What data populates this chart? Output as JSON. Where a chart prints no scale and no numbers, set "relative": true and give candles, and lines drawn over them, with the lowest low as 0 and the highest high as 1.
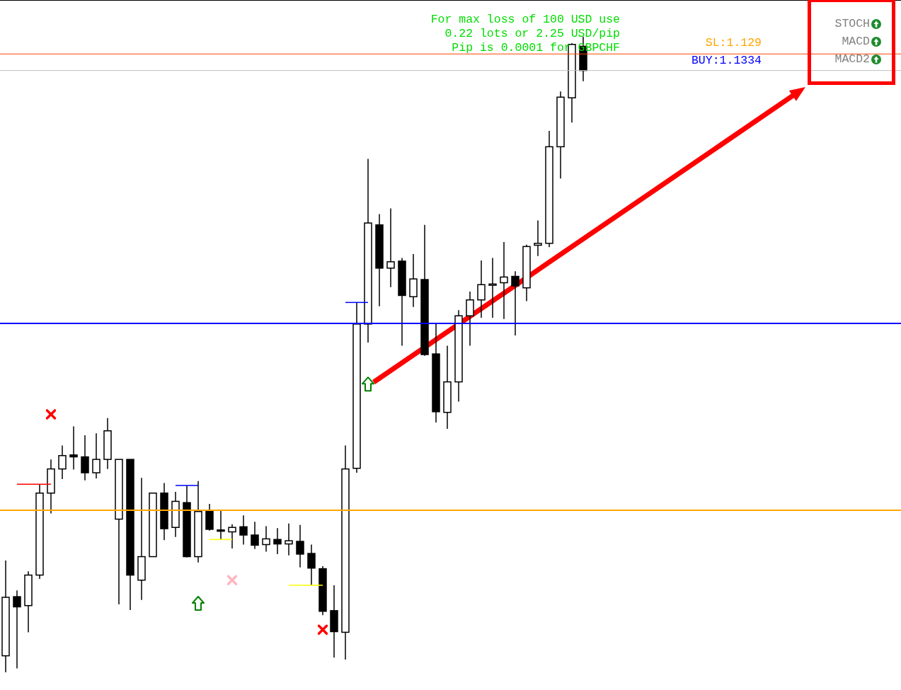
{
  "chart_data": {
    "type": "candlestick",
    "relative": true,
    "categories": [
      null,
      null,
      null,
      null,
      null,
      null,
      null,
      null,
      null,
      null,
      null,
      null,
      null,
      null,
      null,
      null,
      null,
      null,
      null,
      null,
      null,
      null,
      null,
      null,
      null,
      null,
      null,
      null,
      null,
      null,
      null,
      null,
      null,
      null,
      null,
      null,
      null,
      null,
      null,
      null,
      null,
      null,
      null,
      null,
      null,
      null,
      null,
      null,
      null,
      null,
      null,
      null
    ],
    "ohlc": [
      [
        0.026,
        0.176,
        0,
        0.118
      ],
      [
        0.119,
        0.129,
        0.006,
        0.103
      ],
      [
        0.105,
        0.159,
        0.063,
        0.153
      ],
      [
        0.153,
        0.295,
        0.147,
        0.282
      ],
      [
        0.282,
        0.335,
        0.25,
        0.32
      ],
      [
        0.32,
        0.357,
        0.304,
        0.341
      ],
      [
        0.342,
        0.387,
        0.319,
        0.339
      ],
      [
        0.339,
        0.373,
        0.302,
        0.314
      ],
      [
        0.314,
        0.376,
        0.305,
        0.335
      ],
      [
        0.335,
        0.4,
        0.32,
        0.38
      ],
      [
        0.241,
        0.335,
        0.107,
        0.335
      ],
      [
        0.335,
        0.335,
        0.098,
        0.153
      ],
      [
        0.145,
        0.306,
        0.114,
        0.182
      ],
      [
        0.182,
        0.282,
        0.182,
        0.282
      ],
      [
        0.282,
        0.298,
        0.208,
        0.226
      ],
      [
        0.228,
        0.284,
        0.213,
        0.269
      ],
      [
        0.267,
        0.294,
        0.181,
        0.182
      ],
      [
        0.182,
        0.301,
        0.173,
        0.253
      ],
      [
        0.253,
        0.265,
        0.223,
        0.225
      ],
      [
        0.224,
        0.256,
        0.209,
        0.222
      ],
      [
        0.221,
        0.233,
        0.195,
        0.228
      ],
      [
        0.229,
        0.247,
        0.201,
        0.216
      ],
      [
        0.216,
        0.237,
        0.194,
        0.2
      ],
      [
        0.201,
        0.23,
        0.19,
        0.21
      ],
      [
        0.209,
        0.227,
        0.186,
        0.202
      ],
      [
        0.202,
        0.234,
        0.184,
        0.207
      ],
      [
        0.206,
        0.232,
        0.165,
        0.186
      ],
      [
        0.187,
        0.201,
        0.137,
        0.164
      ],
      [
        0.163,
        0.167,
        0.09,
        0.096
      ],
      [
        0.097,
        0.137,
        0.023,
        0.064
      ],
      [
        0.063,
        0.357,
        0.02,
        0.32
      ],
      [
        0.321,
        0.582,
        0.314,
        0.548
      ],
      [
        0.548,
        0.808,
        0.519,
        0.707
      ],
      [
        0.704,
        0.721,
        0.576,
        0.636
      ],
      [
        0.636,
        0.73,
        0.606,
        0.646
      ],
      [
        0.647,
        0.652,
        0.514,
        0.593
      ],
      [
        0.591,
        0.658,
        0.575,
        0.619
      ],
      [
        0.618,
        0.704,
        0.498,
        0.5
      ],
      [
        0.501,
        0.548,
        0.393,
        0.41
      ],
      [
        0.409,
        0.514,
        0.383,
        0.457
      ],
      [
        0.457,
        0.57,
        0.426,
        0.561
      ],
      [
        0.561,
        0.599,
        0.514,
        0.586
      ],
      [
        0.586,
        0.648,
        0.558,
        0.61
      ],
      [
        0.609,
        0.652,
        0.558,
        0.611
      ],
      [
        0.613,
        0.677,
        0.556,
        0.622
      ],
      [
        0.623,
        0.631,
        0.53,
        0.608
      ],
      [
        0.605,
        0.673,
        0.584,
        0.67
      ],
      [
        0.672,
        0.711,
        0.655,
        0.675
      ],
      [
        0.675,
        0.852,
        0.669,
        0.827
      ],
      [
        0.827,
        0.914,
        0.777,
        0.905
      ],
      [
        0.904,
        0.99,
        0.865,
        0.988
      ],
      [
        0.985,
        1,
        0.93,
        0.947
      ]
    ],
    "series": [
      {
        "type": "line",
        "color": "#ff0000",
        "values": [
          null,
          0.296,
          0.296,
          0.296,
          0.296,
          null,
          null,
          null,
          null,
          null,
          null,
          null,
          null,
          null,
          null,
          null,
          null,
          null,
          null,
          null,
          null,
          null,
          null,
          null,
          null,
          null,
          null,
          null,
          null,
          null,
          null,
          null,
          null,
          null,
          null,
          null,
          null,
          null,
          null,
          null,
          null,
          null,
          null,
          null,
          null,
          null,
          null,
          null,
          null,
          null,
          null,
          null
        ]
      },
      {
        "type": "line",
        "color": "#0000ff",
        "values": [
          null,
          null,
          null,
          null,
          null,
          null,
          null,
          null,
          null,
          null,
          null,
          null,
          null,
          null,
          null,
          0.294,
          0.294,
          0.294,
          null,
          null,
          null,
          null,
          null,
          null,
          null,
          null,
          null,
          null,
          null,
          null,
          null,
          null,
          null,
          null,
          null,
          null,
          null,
          null,
          null,
          null,
          null,
          null,
          null,
          null,
          null,
          null,
          null,
          null,
          null,
          null,
          null,
          null
        ]
      },
      {
        "type": "line",
        "color": "#ffff00",
        "values": [
          null,
          null,
          null,
          null,
          null,
          null,
          null,
          null,
          null,
          null,
          null,
          null,
          null,
          null,
          null,
          null,
          null,
          null,
          0.209,
          0.209,
          0.209,
          null,
          null,
          null,
          null,
          null,
          null,
          null,
          null,
          null,
          null,
          null,
          null,
          null,
          null,
          null,
          null,
          null,
          null,
          null,
          null,
          null,
          null,
          null,
          null,
          null,
          null,
          null,
          null,
          null,
          null,
          null
        ]
      },
      {
        "type": "line",
        "color": "#ffff00",
        "values": [
          null,
          null,
          null,
          null,
          null,
          null,
          null,
          null,
          null,
          null,
          null,
          null,
          null,
          null,
          null,
          null,
          null,
          null,
          null,
          null,
          null,
          null,
          null,
          null,
          null,
          0.137,
          0.137,
          0.137,
          0.137,
          null,
          null,
          null,
          null,
          null,
          null,
          null,
          null,
          null,
          null,
          null,
          null,
          null,
          null,
          null,
          null,
          null,
          null,
          null,
          null,
          null,
          null,
          null
        ]
      },
      {
        "type": "line",
        "color": "#0000ff",
        "values": [
          null,
          null,
          null,
          null,
          null,
          null,
          null,
          null,
          null,
          null,
          null,
          null,
          null,
          null,
          null,
          null,
          null,
          null,
          null,
          null,
          null,
          null,
          null,
          null,
          null,
          null,
          null,
          null,
          null,
          null,
          0.582,
          0.582,
          0.582,
          null,
          null,
          null,
          null,
          null,
          null,
          null,
          null,
          null,
          null,
          null,
          null,
          null,
          null,
          null,
          null,
          null,
          null,
          null
        ]
      },
      {
        "type": "scatter",
        "color": "#ff0000",
        "marker": "cross",
        "values": [
          null,
          null,
          null,
          null,
          0.406,
          null,
          null,
          null,
          null,
          null,
          null,
          null,
          null,
          null,
          null,
          null,
          null,
          null,
          null,
          null,
          null,
          null,
          null,
          null,
          null,
          null,
          null,
          null,
          0.067,
          null,
          null,
          null,
          null,
          null,
          null,
          null,
          null,
          null,
          null,
          null,
          null,
          null,
          null,
          null,
          null,
          null,
          null,
          null,
          null,
          null,
          null,
          null
        ]
      },
      {
        "type": "scatter",
        "color": "#ffb6c1",
        "marker": "cross",
        "values": [
          null,
          null,
          null,
          null,
          null,
          null,
          null,
          null,
          null,
          null,
          null,
          null,
          null,
          null,
          null,
          null,
          null,
          null,
          null,
          null,
          0.145,
          null,
          null,
          null,
          null,
          null,
          null,
          null,
          null,
          null,
          null,
          null,
          null,
          null,
          null,
          null,
          null,
          null,
          null,
          null,
          null,
          null,
          null,
          null,
          null,
          null,
          null,
          null,
          null,
          null,
          null,
          null
        ]
      },
      {
        "type": "scatter",
        "color": "#008000",
        "marker": "triangle",
        "values": [
          null,
          null,
          null,
          null,
          null,
          null,
          null,
          null,
          null,
          null,
          null,
          null,
          null,
          null,
          null,
          null,
          null,
          0.108,
          null,
          null,
          null,
          null,
          null,
          null,
          null,
          null,
          null,
          null,
          null,
          null,
          null,
          null,
          0.453,
          null,
          null,
          null,
          null,
          null,
          null,
          null,
          null,
          null,
          null,
          null,
          null,
          null,
          null,
          null,
          null,
          null,
          null,
          null
        ]
      }
    ],
    "ref_lines": [
      {
        "axis": "y",
        "value": 0.973,
        "color": "#ff4500"
      },
      {
        "axis": "y",
        "value": 0.947,
        "color": "#c0c0c0"
      },
      {
        "axis": "y",
        "value": 0.255,
        "color": "#ffa500"
      },
      {
        "axis": "y",
        "value": 0.549,
        "color": "#0000ff"
      }
    ],
    "annotations": [
      "For max loss of 100 USD use",
      "0.22 lots or 2.25 USD/pip",
      "Pip is 0.0001 for GBPCHF",
      "SL:1.129",
      "BUY:1.1334",
      "STOCH",
      "MACD",
      "MACD2"
    ]
  }
}
